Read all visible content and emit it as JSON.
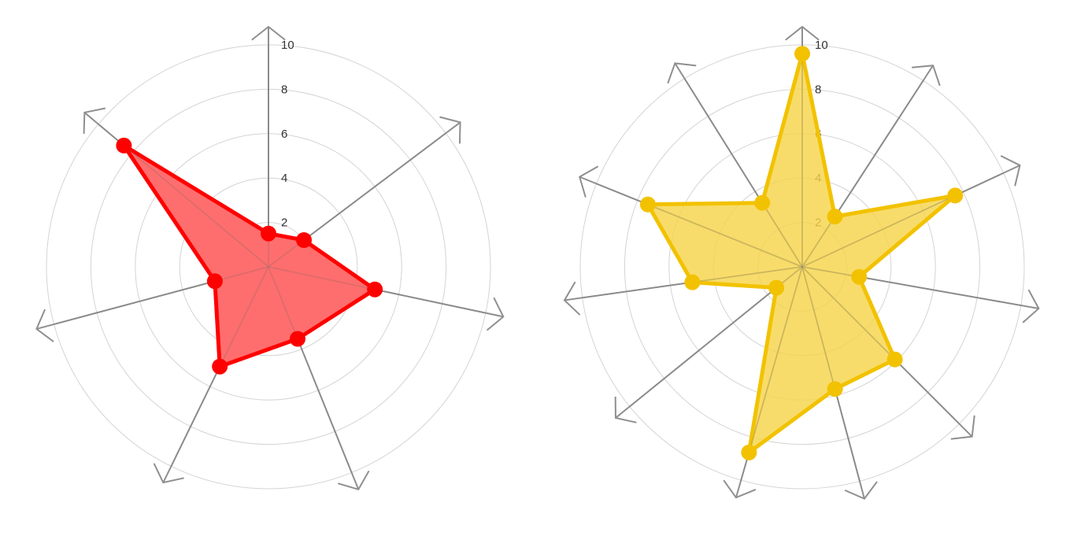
{
  "chart_data": [
    {
      "type": "radar",
      "color": "#ff0000",
      "fill": "#ff6666",
      "radial_max": 10,
      "ticks": [
        "2",
        "4",
        "6",
        "8",
        "10"
      ],
      "values": [
        1.5,
        2.0,
        4.9,
        3.5,
        5.0,
        2.5,
        8.5
      ]
    },
    {
      "type": "radar",
      "color": "#f2c200",
      "fill": "#f7d44a",
      "radial_max": 10,
      "ticks": [
        "2",
        "4",
        "6",
        "8",
        "10"
      ],
      "values": [
        9.6,
        2.7,
        7.6,
        2.6,
        5.9,
        5.7,
        8.7,
        1.5,
        5.0,
        7.5,
        3.4
      ]
    }
  ]
}
